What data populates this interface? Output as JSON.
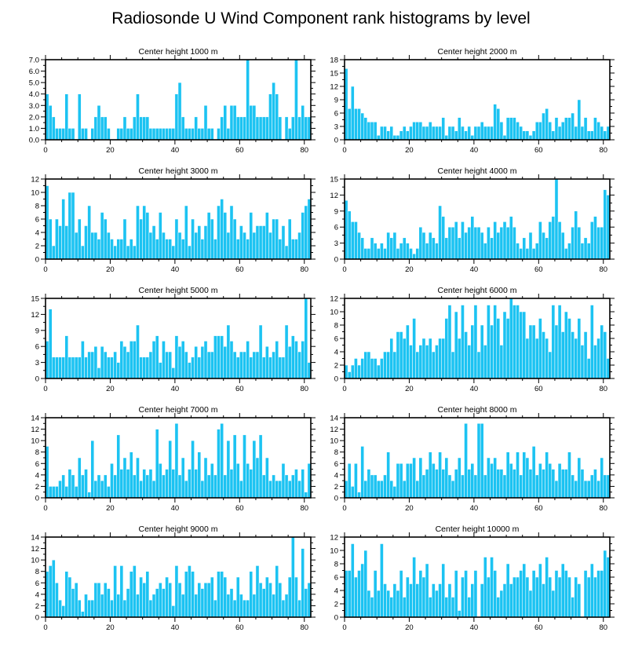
{
  "figure": {
    "title": "Radiosonde U Wind Component rank histograms by level"
  },
  "colors": {
    "bar": "#1cc3f2",
    "frame": "#000000"
  },
  "chart_data": [
    {
      "type": "bar",
      "title": "Center height 1000 m",
      "xlabel": "",
      "ylabel": "",
      "xlim": [
        0,
        82
      ],
      "ylim": [
        0,
        7
      ],
      "xticks": [
        0,
        20,
        40,
        60,
        80
      ],
      "yticks": [
        0,
        1,
        2,
        3,
        4,
        5,
        6,
        7
      ],
      "yticklabels": [
        "0.0",
        "1.0",
        "2.0",
        "3.0",
        "4.0",
        "5.0",
        "6.0",
        "7.0"
      ],
      "values": [
        4,
        3,
        2,
        1,
        1,
        1,
        4,
        1,
        1,
        0,
        4,
        1,
        1,
        0,
        1,
        2,
        3,
        2,
        2,
        1,
        0,
        0,
        1,
        1,
        2,
        1,
        1,
        2,
        4,
        2,
        2,
        2,
        1,
        1,
        1,
        1,
        1,
        1,
        1,
        1,
        4,
        5,
        2,
        1,
        1,
        1,
        2,
        1,
        1,
        3,
        1,
        1,
        0,
        1,
        2,
        3,
        1,
        3,
        3,
        2,
        2,
        2,
        7,
        3,
        3,
        2,
        2,
        2,
        2,
        4,
        5,
        4,
        2,
        0,
        2,
        1,
        2,
        7,
        2,
        3,
        2,
        2
      ]
    },
    {
      "type": "bar",
      "title": "Center height 2000 m",
      "xlabel": "",
      "ylabel": "",
      "xlim": [
        0,
        82
      ],
      "ylim": [
        0,
        18
      ],
      "xticks": [
        0,
        20,
        40,
        60,
        80
      ],
      "yticks": [
        0,
        3,
        6,
        9,
        12,
        15,
        18
      ],
      "yticklabels": [
        "0",
        "3",
        "6",
        "9",
        "12",
        "15",
        "18"
      ],
      "values": [
        16,
        7,
        12,
        7,
        7,
        6,
        5,
        4,
        4,
        4,
        1,
        3,
        3,
        2,
        3,
        1,
        1,
        2,
        3,
        2,
        3,
        4,
        4,
        4,
        3,
        3,
        4,
        3,
        3,
        3,
        5,
        1,
        3,
        3,
        2,
        5,
        3,
        2,
        3,
        1,
        3,
        3,
        4,
        3,
        3,
        3,
        8,
        7,
        4,
        1,
        5,
        5,
        5,
        4,
        3,
        2,
        2,
        1,
        2,
        4,
        4,
        6,
        7,
        4,
        2,
        5,
        3,
        4,
        5,
        5,
        6,
        3,
        9,
        3,
        5,
        2,
        2,
        5,
        4,
        3,
        2,
        3
      ]
    },
    {
      "type": "bar",
      "title": "Center height 3000 m",
      "xlabel": "",
      "ylabel": "",
      "xlim": [
        0,
        82
      ],
      "ylim": [
        0,
        12
      ],
      "xticks": [
        0,
        20,
        40,
        60,
        80
      ],
      "yticks": [
        0,
        2,
        4,
        6,
        8,
        10,
        12
      ],
      "yticklabels": [
        "0",
        "2",
        "4",
        "6",
        "8",
        "10",
        "12"
      ],
      "values": [
        11,
        6,
        2,
        6,
        5,
        9,
        5,
        10,
        10,
        4,
        6,
        2,
        5,
        8,
        4,
        4,
        3,
        7,
        6,
        4,
        3,
        2,
        3,
        3,
        6,
        2,
        3,
        2,
        8,
        6,
        8,
        7,
        4,
        5,
        3,
        7,
        4,
        3,
        3,
        2,
        6,
        4,
        3,
        8,
        2,
        6,
        4,
        5,
        3,
        5,
        7,
        6,
        3,
        8,
        9,
        7,
        4,
        8,
        6,
        3,
        5,
        4,
        3,
        7,
        4,
        5,
        5,
        5,
        7,
        4,
        6,
        6,
        3,
        5,
        2,
        6,
        3,
        3,
        4,
        7,
        8,
        9
      ]
    },
    {
      "type": "bar",
      "title": "Center height 4000 m",
      "xlabel": "",
      "ylabel": "",
      "xlim": [
        0,
        82
      ],
      "ylim": [
        0,
        15
      ],
      "xticks": [
        0,
        20,
        40,
        60,
        80
      ],
      "yticks": [
        0,
        3,
        6,
        9,
        12,
        15
      ],
      "yticklabels": [
        "0",
        "3",
        "6",
        "9",
        "12",
        "15"
      ],
      "values": [
        11,
        9,
        7,
        7,
        5,
        4,
        2,
        2,
        4,
        3,
        2,
        3,
        2,
        5,
        4,
        5,
        2,
        3,
        4,
        3,
        2,
        1,
        2,
        6,
        5,
        3,
        5,
        4,
        3,
        10,
        8,
        4,
        6,
        6,
        7,
        4,
        7,
        5,
        6,
        8,
        6,
        6,
        5,
        3,
        6,
        4,
        7,
        5,
        6,
        7,
        6,
        8,
        6,
        3,
        2,
        4,
        2,
        5,
        2,
        3,
        7,
        5,
        4,
        7,
        8,
        15,
        7,
        5,
        2,
        3,
        6,
        9,
        6,
        3,
        4,
        3,
        7,
        8,
        6,
        6,
        13,
        12
      ]
    },
    {
      "type": "bar",
      "title": "Center height 5000 m",
      "xlabel": "",
      "ylabel": "",
      "xlim": [
        0,
        82
      ],
      "ylim": [
        0,
        15
      ],
      "xticks": [
        0,
        20,
        40,
        60,
        80
      ],
      "yticks": [
        0,
        3,
        6,
        9,
        12,
        15
      ],
      "yticklabels": [
        "0",
        "3",
        "6",
        "9",
        "12",
        "15"
      ],
      "values": [
        7,
        13,
        4,
        4,
        4,
        4,
        8,
        4,
        4,
        4,
        4,
        7,
        4,
        5,
        5,
        6,
        2,
        6,
        5,
        4,
        4,
        5,
        3,
        7,
        6,
        5,
        7,
        7,
        10,
        4,
        4,
        4,
        5,
        7,
        8,
        3,
        7,
        5,
        5,
        2,
        8,
        6,
        7,
        5,
        3,
        4,
        6,
        4,
        6,
        7,
        5,
        5,
        8,
        8,
        8,
        6,
        10,
        7,
        5,
        4,
        5,
        5,
        7,
        4,
        5,
        5,
        10,
        4,
        6,
        4,
        5,
        7,
        4,
        4,
        10,
        6,
        8,
        7,
        5,
        7,
        15,
        3
      ]
    },
    {
      "type": "bar",
      "title": "Center height 6000 m",
      "xlabel": "",
      "ylabel": "",
      "xlim": [
        0,
        82
      ],
      "ylim": [
        0,
        12
      ],
      "xticks": [
        0,
        20,
        40,
        60,
        80
      ],
      "yticks": [
        0,
        2,
        4,
        6,
        8,
        10,
        12
      ],
      "yticklabels": [
        "0",
        "2",
        "4",
        "6",
        "8",
        "10",
        "12"
      ],
      "values": [
        2,
        1,
        2,
        3,
        2,
        3,
        4,
        4,
        3,
        3,
        2,
        3,
        4,
        4,
        6,
        4,
        7,
        7,
        6,
        8,
        5,
        9,
        4,
        5,
        6,
        5,
        6,
        4,
        5,
        6,
        6,
        9,
        11,
        4,
        10,
        6,
        11,
        7,
        5,
        8,
        11,
        4,
        8,
        5,
        11,
        8,
        11,
        9,
        5,
        10,
        9,
        12,
        11,
        11,
        10,
        10,
        6,
        8,
        8,
        6,
        9,
        7,
        6,
        4,
        11,
        8,
        11,
        7,
        10,
        9,
        7,
        6,
        9,
        5,
        7,
        3,
        11,
        5,
        6,
        8,
        7,
        3
      ]
    },
    {
      "type": "bar",
      "title": "Center height 7000 m",
      "xlabel": "",
      "ylabel": "",
      "xlim": [
        0,
        82
      ],
      "ylim": [
        0,
        14
      ],
      "xticks": [
        0,
        20,
        40,
        60,
        80
      ],
      "yticks": [
        0,
        2,
        4,
        6,
        8,
        10,
        12,
        14
      ],
      "yticklabels": [
        "0",
        "2",
        "4",
        "6",
        "8",
        "10",
        "12",
        "14"
      ],
      "values": [
        9,
        2,
        2,
        2,
        3,
        4,
        2,
        5,
        4,
        2,
        7,
        4,
        5,
        1,
        10,
        3,
        4,
        3,
        4,
        2,
        6,
        4,
        11,
        5,
        7,
        5,
        8,
        4,
        7,
        3,
        5,
        4,
        5,
        3,
        12,
        6,
        4,
        5,
        10,
        5,
        13,
        4,
        7,
        3,
        5,
        10,
        5,
        8,
        3,
        7,
        4,
        6,
        4,
        12,
        13,
        4,
        10,
        5,
        11,
        6,
        3,
        11,
        6,
        5,
        10,
        7,
        11,
        4,
        7,
        3,
        4,
        3,
        3,
        6,
        4,
        3,
        4,
        5,
        3,
        5,
        1,
        6
      ]
    },
    {
      "type": "bar",
      "title": "Center height 8000 m",
      "xlabel": "",
      "ylabel": "",
      "xlim": [
        0,
        82
      ],
      "ylim": [
        0,
        14
      ],
      "xticks": [
        0,
        20,
        40,
        60,
        80
      ],
      "yticks": [
        0,
        2,
        4,
        6,
        8,
        10,
        12,
        14
      ],
      "yticklabels": [
        "0",
        "2",
        "4",
        "6",
        "8",
        "10",
        "12",
        "14"
      ],
      "values": [
        3,
        6,
        2,
        6,
        1,
        9,
        3,
        5,
        4,
        4,
        3,
        3,
        4,
        8,
        3,
        2,
        6,
        6,
        3,
        6,
        6,
        7,
        3,
        7,
        4,
        5,
        8,
        6,
        5,
        8,
        5,
        7,
        4,
        3,
        5,
        7,
        4,
        13,
        5,
        6,
        4,
        13,
        13,
        4,
        7,
        6,
        7,
        5,
        5,
        4,
        8,
        6,
        5,
        8,
        4,
        8,
        7,
        5,
        9,
        4,
        6,
        5,
        8,
        6,
        5,
        3,
        6,
        5,
        5,
        8,
        4,
        3,
        7,
        5,
        3,
        3,
        4,
        5,
        3,
        7,
        4,
        4
      ]
    },
    {
      "type": "bar",
      "title": "Center height 9000 m",
      "xlabel": "",
      "ylabel": "",
      "xlim": [
        0,
        82
      ],
      "ylim": [
        0,
        14
      ],
      "xticks": [
        0,
        20,
        40,
        60,
        80
      ],
      "yticks": [
        0,
        2,
        4,
        6,
        8,
        10,
        12,
        14
      ],
      "yticklabels": [
        "0",
        "2",
        "4",
        "6",
        "8",
        "10",
        "12",
        "14"
      ],
      "values": [
        8,
        9,
        10,
        6,
        3,
        2,
        8,
        7,
        5,
        6,
        3,
        1,
        4,
        3,
        3,
        6,
        6,
        4,
        6,
        5,
        3,
        9,
        4,
        9,
        3,
        5,
        8,
        9,
        4,
        7,
        6,
        8,
        3,
        4,
        5,
        6,
        5,
        7,
        6,
        2,
        9,
        6,
        4,
        8,
        9,
        8,
        4,
        6,
        5,
        6,
        6,
        7,
        3,
        8,
        8,
        7,
        4,
        5,
        3,
        7,
        4,
        3,
        3,
        8,
        4,
        9,
        6,
        5,
        7,
        6,
        4,
        9,
        6,
        3,
        4,
        7,
        14,
        7,
        3,
        12,
        5,
        6
      ]
    },
    {
      "type": "bar",
      "title": "Center height 10000 m",
      "xlabel": "",
      "ylabel": "",
      "xlim": [
        0,
        82
      ],
      "ylim": [
        0,
        12
      ],
      "xticks": [
        0,
        20,
        40,
        60,
        80
      ],
      "yticks": [
        0,
        2,
        4,
        6,
        8,
        10,
        12
      ],
      "yticklabels": [
        "0",
        "2",
        "4",
        "6",
        "8",
        "10",
        "12"
      ],
      "values": [
        7,
        7,
        11,
        6,
        7,
        8,
        10,
        4,
        3,
        7,
        4,
        11,
        5,
        4,
        3,
        5,
        4,
        7,
        3,
        6,
        5,
        9,
        5,
        7,
        6,
        8,
        3,
        5,
        4,
        5,
        8,
        3,
        5,
        3,
        7,
        1,
        6,
        7,
        3,
        5,
        7,
        0,
        5,
        9,
        6,
        9,
        7,
        3,
        4,
        5,
        8,
        5,
        6,
        6,
        7,
        8,
        6,
        4,
        7,
        6,
        8,
        5,
        9,
        6,
        4,
        7,
        6,
        8,
        7,
        6,
        3,
        6,
        5,
        0,
        7,
        6,
        8,
        6,
        7,
        7,
        10,
        9
      ]
    }
  ]
}
